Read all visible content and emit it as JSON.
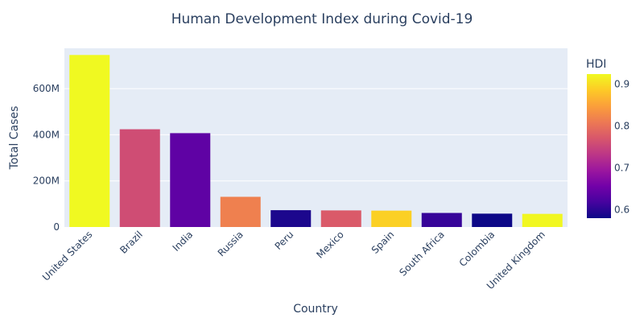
{
  "chart_data": {
    "type": "bar",
    "title": "Human Development Index during Covid-19",
    "xlabel": "Country",
    "ylabel": "Total Cases",
    "categories": [
      "United States",
      "Brazil",
      "India",
      "Russia",
      "Peru",
      "Mexico",
      "Spain",
      "South Africa",
      "Colombia",
      "United Kingdom"
    ],
    "values": [
      746000000,
      424000000,
      407000000,
      131000000,
      73000000,
      72000000,
      71000000,
      61000000,
      58000000,
      57000000
    ],
    "hdi": [
      0.924,
      0.759,
      0.64,
      0.816,
      0.59,
      0.774,
      0.891,
      0.608,
      0.58,
      0.922
    ],
    "ylim": [
      0,
      775000000
    ],
    "yticks": [
      0,
      200000000,
      400000000,
      600000000
    ],
    "ytick_labels": [
      "0",
      "200M",
      "400M",
      "600M"
    ],
    "grid": true,
    "colorbar": {
      "title": "HDI",
      "range": [
        0.58,
        0.924
      ],
      "ticks": [
        0.6,
        0.7,
        0.8,
        0.9
      ],
      "tick_labels": [
        "0.6",
        "0.7",
        "0.8",
        "0.9"
      ],
      "colorscale": [
        "#0d0887",
        "#46039f",
        "#7201a8",
        "#9c179e",
        "#bd3786",
        "#d8576b",
        "#ed7953",
        "#fb9f3a",
        "#fdca26",
        "#f0f921"
      ]
    },
    "colors": {
      "plot_bg": "#e5ecf6",
      "grid": "#ffffff",
      "text": "#2a3f5f"
    }
  }
}
